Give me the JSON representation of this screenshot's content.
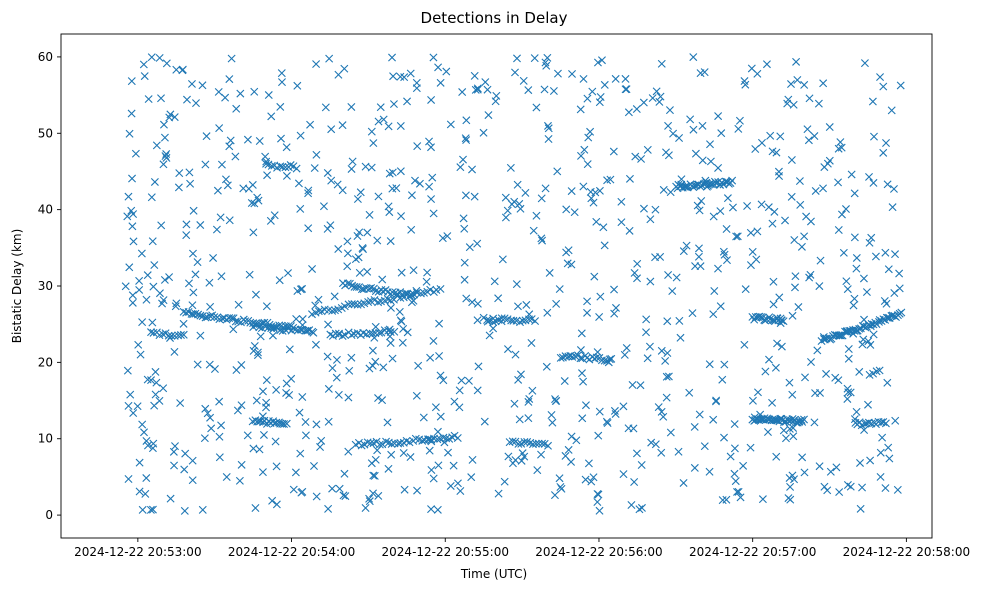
{
  "chart_data": {
    "type": "scatter",
    "title": "Detections in Delay",
    "xlabel": "Time (UTC)",
    "ylabel": "Bistatic Delay (km)",
    "marker": "x",
    "marker_color": "#1f77b4",
    "x_range": [
      "2024-12-22 20:52:30",
      "2024-12-22 20:58:10"
    ],
    "ylim": [
      -3,
      63
    ],
    "x_ticks": [
      "2024-12-22 20:53:00",
      "2024-12-22 20:54:00",
      "2024-12-22 20:55:00",
      "2024-12-22 20:56:00",
      "2024-12-22 20:57:00",
      "2024-12-22 20:58:00"
    ],
    "y_ticks": [
      "0",
      "10",
      "20",
      "30",
      "40",
      "50",
      "60"
    ],
    "grid": false,
    "tracks": [
      {
        "t_start": "2024-12-22 20:53:18",
        "t_end": "2024-12-22 20:54:08",
        "delay_start": 26.5,
        "delay_end": 24.2,
        "points": 55
      },
      {
        "t_start": "2024-12-22 20:54:08",
        "t_end": "2024-12-22 20:54:58",
        "delay_start": 26.5,
        "delay_end": 29.5,
        "points": 40
      },
      {
        "t_start": "2024-12-22 20:54:20",
        "t_end": "2024-12-22 20:54:47",
        "delay_start": 30.2,
        "delay_end": 28.8,
        "points": 30
      },
      {
        "t_start": "2024-12-22 20:54:15",
        "t_end": "2024-12-22 20:54:40",
        "delay_start": 23.5,
        "delay_end": 24.2,
        "points": 22
      },
      {
        "t_start": "2024-12-22 20:54:25",
        "t_end": "2024-12-22 20:55:05",
        "delay_start": 9.2,
        "delay_end": 10.2,
        "points": 35
      },
      {
        "t_start": "2024-12-22 20:53:45",
        "t_end": "2024-12-22 20:53:58",
        "delay_start": 12.4,
        "delay_end": 11.8,
        "points": 18
      },
      {
        "t_start": "2024-12-22 20:53:45",
        "t_end": "2024-12-22 20:54:00",
        "delay_start": 24.8,
        "delay_end": 24.2,
        "points": 14
      },
      {
        "t_start": "2024-12-22 20:55:45",
        "t_end": "2024-12-22 20:56:05",
        "delay_start": 20.8,
        "delay_end": 20.4,
        "points": 22
      },
      {
        "t_start": "2024-12-22 20:56:30",
        "t_end": "2024-12-22 20:56:52",
        "delay_start": 43.0,
        "delay_end": 43.6,
        "points": 40
      },
      {
        "t_start": "2024-12-22 20:57:00",
        "t_end": "2024-12-22 20:57:20",
        "delay_start": 12.5,
        "delay_end": 12.3,
        "points": 40
      },
      {
        "t_start": "2024-12-22 20:57:00",
        "t_end": "2024-12-22 20:57:12",
        "delay_start": 25.8,
        "delay_end": 25.6,
        "points": 20
      },
      {
        "t_start": "2024-12-22 20:57:27",
        "t_end": "2024-12-22 20:57:58",
        "delay_start": 22.8,
        "delay_end": 26.3,
        "points": 50
      },
      {
        "t_start": "2024-12-22 20:57:40",
        "t_end": "2024-12-22 20:57:52",
        "delay_start": 12.0,
        "delay_end": 12.0,
        "points": 14
      },
      {
        "t_start": "2024-12-22 20:53:05",
        "t_end": "2024-12-22 20:53:18",
        "delay_start": 23.8,
        "delay_end": 23.5,
        "points": 12
      },
      {
        "t_start": "2024-12-22 20:55:15",
        "t_end": "2024-12-22 20:55:35",
        "delay_start": 25.6,
        "delay_end": 25.4,
        "points": 18
      },
      {
        "t_start": "2024-12-22 20:55:25",
        "t_end": "2024-12-22 20:55:40",
        "delay_start": 9.6,
        "delay_end": 9.3,
        "points": 14
      },
      {
        "t_start": "2024-12-22 20:53:50",
        "t_end": "2024-12-22 20:54:02",
        "delay_start": 45.8,
        "delay_end": 45.6,
        "points": 12
      }
    ],
    "scatter_detections": {
      "t_start": "2024-12-22 20:52:55",
      "t_end": "2024-12-22 20:57:58",
      "delay_min": 0.5,
      "delay_max": 60.0,
      "points": 950
    }
  }
}
